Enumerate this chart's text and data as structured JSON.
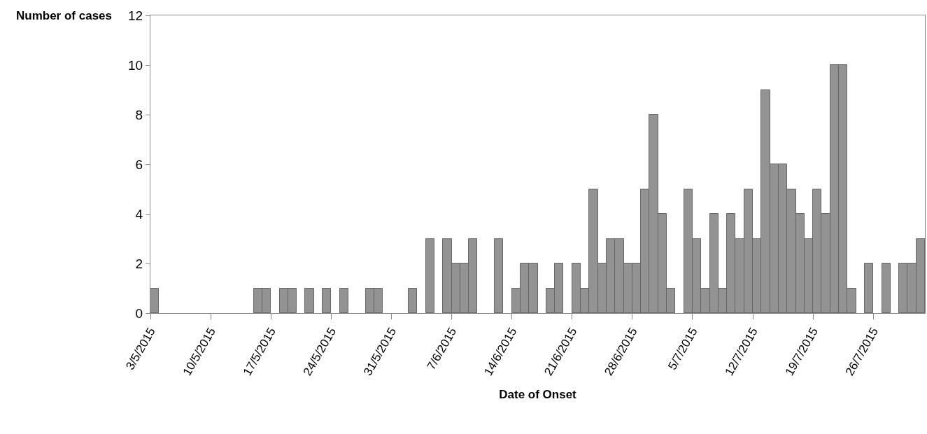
{
  "chart_data": {
    "type": "bar",
    "xlabel": "Date of Onset",
    "ylabel": "Number of cases",
    "x": [
      "2015-05-03T12:00",
      "2015-05-04T12:00",
      "2015-05-05T12:00",
      "2015-05-06T12:00",
      "2015-05-07T12:00",
      "2015-05-08T12:00",
      "2015-05-09T12:00",
      "2015-05-10T12:00",
      "2015-05-11T12:00",
      "2015-05-12T12:00",
      "2015-05-13T12:00",
      "2015-05-14T12:00",
      "2015-05-15T12:00",
      "2015-05-16T12:00",
      "2015-05-17T12:00",
      "2015-05-18T12:00",
      "2015-05-19T12:00",
      "2015-05-20T12:00",
      "2015-05-21T12:00",
      "2015-05-22T12:00",
      "2015-05-23T12:00",
      "2015-05-24T12:00",
      "2015-05-25T12:00",
      "2015-05-26T12:00",
      "2015-05-27T12:00",
      "2015-05-28T12:00",
      "2015-05-29T12:00",
      "2015-05-30T12:00",
      "2015-05-31T12:00",
      "2015-06-01T12:00",
      "2015-06-02T12:00",
      "2015-06-03T12:00",
      "2015-06-04T12:00",
      "2015-06-05T12:00",
      "2015-06-06T12:00",
      "2015-06-07T12:00",
      "2015-06-08T12:00",
      "2015-06-09T12:00",
      "2015-06-10T12:00",
      "2015-06-11T12:00",
      "2015-06-12T12:00",
      "2015-06-13T12:00",
      "2015-06-14T12:00",
      "2015-06-15T12:00",
      "2015-06-16T12:00",
      "2015-06-17T12:00",
      "2015-06-18T12:00",
      "2015-06-19T12:00",
      "2015-06-20T12:00",
      "2015-06-21T12:00",
      "2015-06-22T12:00",
      "2015-06-23T12:00",
      "2015-06-24T12:00",
      "2015-06-25T12:00",
      "2015-06-26T12:00",
      "2015-06-27T12:00",
      "2015-06-28T12:00",
      "2015-06-29T12:00",
      "2015-06-30T12:00",
      "2015-07-01T12:00",
      "2015-07-02T12:00",
      "2015-07-03T12:00",
      "2015-07-04T12:00",
      "2015-07-05T12:00",
      "2015-07-06T12:00",
      "2015-07-07T12:00",
      "2015-07-08T12:00",
      "2015-07-09T12:00",
      "2015-07-10T12:00",
      "2015-07-11T12:00",
      "2015-07-12T12:00",
      "2015-07-13T12:00",
      "2015-07-14T12:00",
      "2015-07-15T12:00",
      "2015-07-16T12:00",
      "2015-07-17T12:00",
      "2015-07-18T12:00",
      "2015-07-19T12:00",
      "2015-07-20T12:00",
      "2015-07-21T12:00",
      "2015-07-22T12:00",
      "2015-07-23T12:00",
      "2015-07-24T12:00",
      "2015-07-25T12:00",
      "2015-07-26T12:00",
      "2015-07-27T12:00",
      "2015-07-28T12:00",
      "2015-07-29T12:00",
      "2015-07-30T12:00",
      "2015-07-31T12:00"
    ],
    "values": [
      1,
      0,
      0,
      0,
      0,
      0,
      0,
      0,
      0,
      0,
      0,
      0,
      1,
      1,
      0,
      1,
      1,
      0,
      1,
      0,
      1,
      0,
      1,
      0,
      0,
      1,
      1,
      0,
      0,
      0,
      1,
      0,
      3,
      0,
      3,
      2,
      2,
      3,
      0,
      0,
      3,
      0,
      1,
      2,
      2,
      0,
      1,
      2,
      0,
      2,
      1,
      5,
      2,
      3,
      3,
      2,
      2,
      5,
      8,
      4,
      1,
      0,
      5,
      3,
      1,
      4,
      1,
      4,
      3,
      5,
      3,
      9,
      6,
      6,
      5,
      4,
      3,
      5,
      4,
      10,
      10,
      1,
      0,
      2,
      0,
      2,
      0,
      2,
      2,
      3
    ],
    "color": "#939393",
    "xlim": [
      "2015-05-03",
      "2015-08-01"
    ],
    "xticks": [
      {
        "value": "2015-05-03",
        "label": "3/5/2015"
      },
      {
        "value": "2015-05-10",
        "label": "10/5/2015"
      },
      {
        "value": "2015-05-17",
        "label": "17/5/2015"
      },
      {
        "value": "2015-05-24",
        "label": "24/5/2015"
      },
      {
        "value": "2015-05-31",
        "label": "31/5/2015"
      },
      {
        "value": "2015-06-07",
        "label": "7/6/2015"
      },
      {
        "value": "2015-06-14",
        "label": "14/6/2015"
      },
      {
        "value": "2015-06-21",
        "label": "21/6/2015"
      },
      {
        "value": "2015-06-28",
        "label": "28/6/2015"
      },
      {
        "value": "2015-07-05",
        "label": "5/7/2015"
      },
      {
        "value": "2015-07-12",
        "label": "12/7/2015"
      },
      {
        "value": "2015-07-19",
        "label": "19/7/2015"
      },
      {
        "value": "2015-07-26",
        "label": "26/7/2015"
      }
    ],
    "ylim": [
      0,
      12
    ],
    "yticks": [
      0,
      2,
      4,
      6,
      8,
      10,
      12
    ],
    "grid": false,
    "legend": false
  }
}
